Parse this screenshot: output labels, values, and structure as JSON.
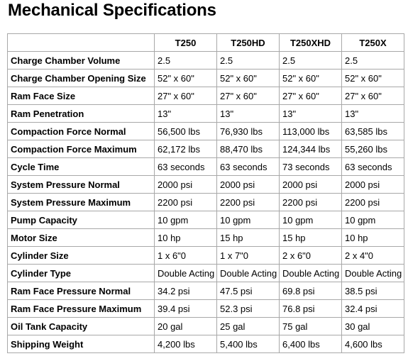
{
  "title": "Mechanical Specifications",
  "table": {
    "corner": "",
    "models": [
      "T250",
      "T250HD",
      "T250XHD",
      "T250X"
    ],
    "rows": [
      {
        "label": "Charge Chamber Volume",
        "values": [
          "2.5",
          "2.5",
          "2.5",
          "2.5"
        ]
      },
      {
        "label": "Charge Chamber Opening Size",
        "values": [
          "52\" x 60\"",
          "52\" x 60\"",
          "52\" x 60\"",
          "52\" x 60\""
        ]
      },
      {
        "label": "Ram Face Size",
        "values": [
          "27\" x 60\"",
          "27\" x 60\"",
          "27\" x 60\"",
          "27\" x 60\""
        ]
      },
      {
        "label": "Ram Penetration",
        "values": [
          "13\"",
          "13\"",
          "13\"",
          "13\""
        ]
      },
      {
        "label": "Compaction Force Normal",
        "values": [
          "56,500 lbs",
          "76,930 lbs",
          "113,000 lbs",
          "63,585 lbs"
        ]
      },
      {
        "label": "Compaction Force Maximum",
        "values": [
          "62,172 lbs",
          "88,470 lbs",
          "124,344 lbs",
          "55,260 lbs"
        ]
      },
      {
        "label": "Cycle Time",
        "values": [
          "63 seconds",
          "63 seconds",
          "73 seconds",
          "63 seconds"
        ]
      },
      {
        "label": "System Pressure Normal",
        "values": [
          "2000 psi",
          "2000 psi",
          "2000 psi",
          "2000 psi"
        ]
      },
      {
        "label": "System Pressure Maximum",
        "values": [
          "2200 psi",
          "2200 psi",
          "2200 psi",
          "2200 psi"
        ]
      },
      {
        "label": "Pump Capacity",
        "values": [
          "10 gpm",
          "10 gpm",
          "10 gpm",
          "10 gpm"
        ]
      },
      {
        "label": "Motor Size",
        "values": [
          "10 hp",
          "15 hp",
          "15 hp",
          "10 hp"
        ]
      },
      {
        "label": "Cylinder Size",
        "values": [
          "1 x 6\"0",
          "1 x 7\"0",
          "2 x 6\"0",
          "2 x 4\"0"
        ]
      },
      {
        "label": "Cylinder Type",
        "values": [
          "Double Acting",
          "Double Acting",
          "Double Acting",
          "Double Acting"
        ]
      },
      {
        "label": "Ram Face Pressure Normal",
        "values": [
          "34.2 psi",
          "47.5 psi",
          "69.8 psi",
          "38.5 psi"
        ]
      },
      {
        "label": "Ram Face Pressure Maximum",
        "values": [
          "39.4 psi",
          "52.3 psi",
          "76.8 psi",
          "32.4 psi"
        ]
      },
      {
        "label": "Oil Tank Capacity",
        "values": [
          "20 gal",
          "25 gal",
          "75 gal",
          "30 gal"
        ]
      },
      {
        "label": "Shipping Weight",
        "values": [
          "4,200 lbs",
          "5,400 lbs",
          "6,400 lbs",
          "4,600 lbs"
        ]
      }
    ]
  }
}
